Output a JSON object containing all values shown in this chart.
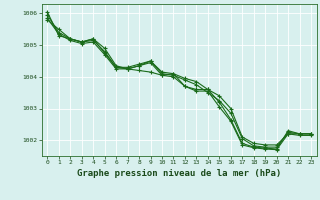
{
  "background_color": "#d8f0ee",
  "grid_color": "#ffffff",
  "line_color": "#1a6b1a",
  "line_width": 0.8,
  "marker": "+",
  "marker_size": 3,
  "marker_edge_width": 0.8,
  "title": "Graphe pression niveau de la mer (hPa)",
  "title_fontsize": 6.5,
  "xlim": [
    -0.5,
    23.5
  ],
  "ylim": [
    1001.5,
    1006.3
  ],
  "yticks": [
    1002,
    1003,
    1004,
    1005,
    1006
  ],
  "xticks": [
    0,
    1,
    2,
    3,
    4,
    5,
    6,
    7,
    8,
    9,
    10,
    11,
    12,
    13,
    14,
    15,
    16,
    17,
    18,
    19,
    20,
    21,
    22,
    23
  ],
  "series": [
    [
      1005.8,
      1005.5,
      1005.2,
      1005.1,
      1005.2,
      1004.9,
      1004.35,
      1004.25,
      1004.2,
      1004.15,
      1004.05,
      1004.1,
      1003.95,
      1003.85,
      1003.6,
      1003.4,
      1003.0,
      1002.1,
      1001.9,
      1001.85,
      1001.85,
      1002.2,
      1002.2,
      1002.2
    ],
    [
      1005.95,
      1005.4,
      1005.2,
      1005.1,
      1005.15,
      1004.8,
      1004.3,
      1004.25,
      1004.35,
      1004.5,
      1004.1,
      1004.05,
      1003.9,
      1003.75,
      1003.5,
      1003.25,
      1002.85,
      1002.05,
      1001.82,
      1001.78,
      1001.78,
      1002.25,
      1002.2,
      1002.2
    ],
    [
      1006.05,
      1005.3,
      1005.2,
      1005.1,
      1005.2,
      1004.75,
      1004.3,
      1004.3,
      1004.4,
      1004.5,
      1004.15,
      1004.1,
      1003.7,
      1003.6,
      1003.6,
      1003.2,
      1002.65,
      1001.9,
      1001.78,
      1001.75,
      1001.72,
      1002.3,
      1002.2,
      1002.2
    ],
    [
      1005.85,
      1005.35,
      1005.15,
      1005.05,
      1005.1,
      1004.7,
      1004.25,
      1004.25,
      1004.35,
      1004.45,
      1004.05,
      1004.0,
      1003.7,
      1003.55,
      1003.55,
      1003.05,
      1002.6,
      1001.85,
      1001.76,
      1001.72,
      1001.7,
      1002.2,
      1002.15,
      1002.15
    ]
  ]
}
